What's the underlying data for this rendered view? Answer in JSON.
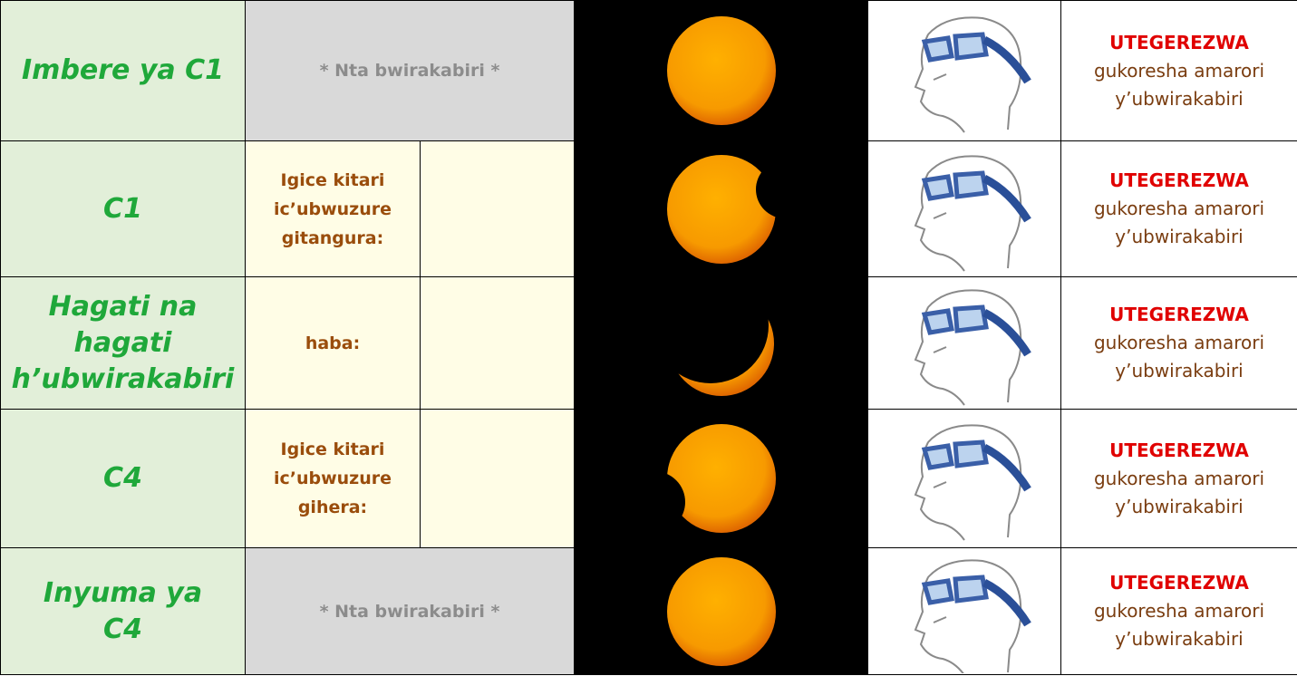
{
  "table": {
    "rows": [
      {
        "phase": "Imbere ya C1",
        "note": "* Nta bwirakabiri *",
        "warning": {
          "title": "UTEGEREZWA",
          "text": "gukoresha amarori\ny’ubwirakabiri"
        }
      },
      {
        "phase": "C1",
        "label": "Igice kitari\nic’ubwuzure\ngitangura:",
        "warning": {
          "title": "UTEGEREZWA",
          "text": "gukoresha amarori\ny’ubwirakabiri"
        }
      },
      {
        "phase": "Hagati na\nhagati\nh’ubwirakabiri",
        "label": "haba:",
        "warning": {
          "title": "UTEGEREZWA",
          "text": "gukoresha amarori\ny’ubwirakabiri"
        }
      },
      {
        "phase": "C4",
        "label": "Igice kitari\nic’ubwuzure\ngihera:",
        "warning": {
          "title": "UTEGEREZWA",
          "text": "gukoresha amarori\ny’ubwirakabiri"
        }
      },
      {
        "phase": "Inyuma ya\nC4",
        "note": "* Nta bwirakabiri *",
        "warning": {
          "title": "UTEGEREZWA",
          "text": "gukoresha amarori\ny’ubwirakabiri"
        }
      }
    ]
  }
}
